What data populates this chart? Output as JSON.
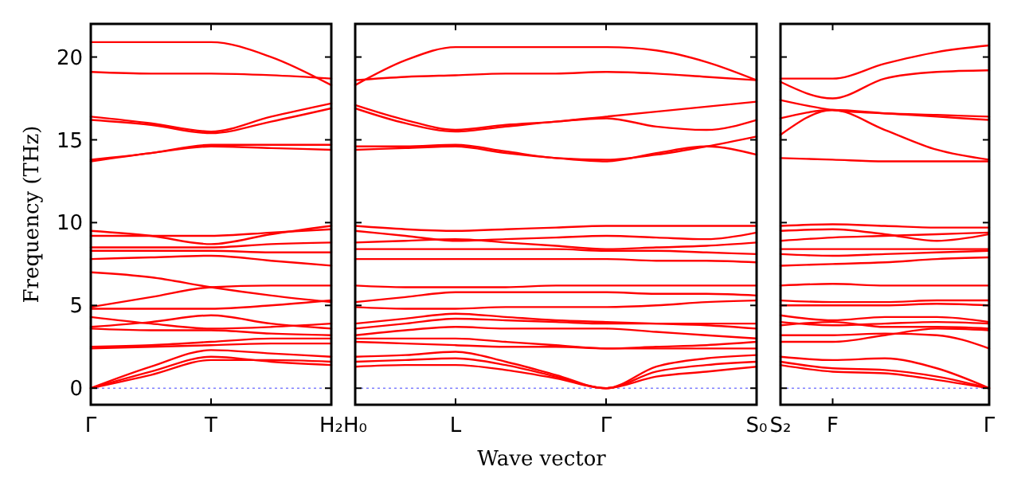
{
  "chart_data": [
    {
      "type": "line",
      "ylabel": "Frequency (THz)",
      "categories": [
        "Γ",
        null,
        "T",
        null,
        "H₂"
      ],
      "ylim": [
        -1,
        22
      ],
      "yticks": [
        0,
        5,
        10,
        15,
        20
      ],
      "marker": "none",
      "line_style": "solid",
      "grid": false,
      "ref_lines": [
        {
          "axis": "y",
          "value": 0,
          "color": "#8080ff",
          "line_style": "dotted"
        }
      ],
      "series": [
        {
          "color": "#ff0000",
          "values": [
            20.9,
            20.9,
            20.9,
            20.0,
            18.3
          ]
        },
        {
          "color": "#ff0000",
          "values": [
            19.1,
            19.0,
            19.0,
            18.9,
            18.7
          ]
        },
        {
          "color": "#ff0000",
          "values": [
            16.4,
            16.0,
            15.5,
            16.4,
            17.2
          ]
        },
        {
          "color": "#ff0000",
          "values": [
            16.2,
            15.9,
            15.4,
            16.1,
            16.9
          ]
        },
        {
          "color": "#ff0000",
          "values": [
            13.8,
            14.2,
            14.7,
            14.7,
            14.7
          ]
        },
        {
          "color": "#ff0000",
          "values": [
            13.7,
            14.2,
            14.6,
            14.5,
            14.4
          ]
        },
        {
          "color": "#ff0000",
          "values": [
            9.5,
            9.2,
            8.7,
            9.3,
            9.8
          ]
        },
        {
          "color": "#ff0000",
          "values": [
            9.2,
            9.2,
            9.2,
            9.4,
            9.6
          ]
        },
        {
          "color": "#ff0000",
          "values": [
            8.5,
            8.5,
            8.5,
            8.7,
            8.8
          ]
        },
        {
          "color": "#ff0000",
          "values": [
            8.3,
            8.3,
            8.3,
            8.2,
            8.2
          ]
        },
        {
          "color": "#ff0000",
          "values": [
            7.8,
            7.9,
            8.0,
            7.7,
            7.4
          ]
        },
        {
          "color": "#ff0000",
          "values": [
            7.0,
            6.7,
            6.1,
            5.6,
            5.2
          ]
        },
        {
          "color": "#ff0000",
          "values": [
            4.9,
            5.5,
            6.1,
            6.2,
            6.2
          ]
        },
        {
          "color": "#ff0000",
          "values": [
            4.8,
            4.8,
            4.8,
            5.0,
            5.3
          ]
        },
        {
          "color": "#ff0000",
          "values": [
            4.3,
            3.9,
            3.6,
            3.7,
            3.9
          ]
        },
        {
          "color": "#ff0000",
          "values": [
            3.7,
            4.0,
            4.4,
            3.9,
            3.6
          ]
        },
        {
          "color": "#ff0000",
          "values": [
            3.6,
            3.5,
            3.5,
            3.3,
            3.2
          ]
        },
        {
          "color": "#ff0000",
          "values": [
            2.5,
            2.6,
            2.8,
            3.0,
            3.0
          ]
        },
        {
          "color": "#ff0000",
          "values": [
            2.4,
            2.5,
            2.6,
            2.7,
            2.7
          ]
        },
        {
          "color": "#ff0000",
          "values": [
            0,
            1.3,
            2.3,
            2.1,
            1.9
          ]
        },
        {
          "color": "#ff0000",
          "values": [
            0,
            1.0,
            1.9,
            1.6,
            1.4
          ]
        },
        {
          "color": "#ff0000",
          "values": [
            0,
            0.8,
            1.7,
            1.7,
            1.6
          ]
        }
      ]
    },
    {
      "type": "line",
      "xlabel": "Wave vector",
      "tick_labels": "x",
      "categories": [
        "H₀",
        null,
        "L",
        null,
        null,
        "Γ",
        null,
        null,
        "S₀"
      ],
      "ylim": [
        -1,
        22
      ],
      "yticks": [
        0,
        5,
        10,
        15,
        20
      ],
      "marker": "none",
      "line_style": "solid",
      "grid": false,
      "ref_lines": [
        {
          "axis": "y",
          "value": 0,
          "color": "#8080ff",
          "line_style": "dotted"
        }
      ],
      "series": [
        {
          "color": "#ff0000",
          "values": [
            18.3,
            19.8,
            20.6,
            20.6,
            20.6,
            20.6,
            20.4,
            19.7,
            18.6
          ]
        },
        {
          "color": "#ff0000",
          "values": [
            18.6,
            18.8,
            18.9,
            19.0,
            19.0,
            19.1,
            19.0,
            18.8,
            18.6
          ]
        },
        {
          "color": "#ff0000",
          "values": [
            17.1,
            16.2,
            15.6,
            15.9,
            16.1,
            16.4,
            16.7,
            17.0,
            17.3
          ]
        },
        {
          "color": "#ff0000",
          "values": [
            16.9,
            16.0,
            15.5,
            15.8,
            16.1,
            16.3,
            15.8,
            15.6,
            16.2
          ]
        },
        {
          "color": "#ff0000",
          "values": [
            14.6,
            14.6,
            14.7,
            14.3,
            13.9,
            13.8,
            14.1,
            14.6,
            15.2
          ]
        },
        {
          "color": "#ff0000",
          "values": [
            14.4,
            14.5,
            14.6,
            14.2,
            13.9,
            13.7,
            14.2,
            14.6,
            14.1
          ]
        },
        {
          "color": "#ff0000",
          "values": [
            9.8,
            9.6,
            9.5,
            9.6,
            9.7,
            9.8,
            9.8,
            9.8,
            9.8
          ]
        },
        {
          "color": "#ff0000",
          "values": [
            9.5,
            9.2,
            8.9,
            9.0,
            9.1,
            9.2,
            9.1,
            9.0,
            9.4
          ]
        },
        {
          "color": "#ff0000",
          "values": [
            8.8,
            8.9,
            9.0,
            8.8,
            8.6,
            8.4,
            8.5,
            8.6,
            8.8
          ]
        },
        {
          "color": "#ff0000",
          "values": [
            8.4,
            8.4,
            8.4,
            8.4,
            8.4,
            8.3,
            8.3,
            8.2,
            8.1
          ]
        },
        {
          "color": "#ff0000",
          "values": [
            7.8,
            7.8,
            7.8,
            7.8,
            7.8,
            7.8,
            7.7,
            7.7,
            7.6
          ]
        },
        {
          "color": "#ff0000",
          "values": [
            6.2,
            6.1,
            6.1,
            6.1,
            6.2,
            6.2,
            6.2,
            6.2,
            6.2
          ]
        },
        {
          "color": "#ff0000",
          "values": [
            5.2,
            5.5,
            5.8,
            5.8,
            5.8,
            5.8,
            5.7,
            5.7,
            5.6
          ]
        },
        {
          "color": "#ff0000",
          "values": [
            4.9,
            4.8,
            4.8,
            4.9,
            4.9,
            4.9,
            5.0,
            5.2,
            5.3
          ]
        },
        {
          "color": "#ff0000",
          "values": [
            3.9,
            4.2,
            4.5,
            4.3,
            4.1,
            4.0,
            3.9,
            3.8,
            3.6
          ]
        },
        {
          "color": "#ff0000",
          "values": [
            3.6,
            3.9,
            4.2,
            4.1,
            4.0,
            3.9,
            3.9,
            3.9,
            3.9
          ]
        },
        {
          "color": "#ff0000",
          "values": [
            3.2,
            3.5,
            3.7,
            3.6,
            3.6,
            3.6,
            3.4,
            3.2,
            3.0
          ]
        },
        {
          "color": "#ff0000",
          "values": [
            3.0,
            3.0,
            3.0,
            2.8,
            2.6,
            2.4,
            2.5,
            2.6,
            2.8
          ]
        },
        {
          "color": "#ff0000",
          "values": [
            2.8,
            2.7,
            2.6,
            2.5,
            2.5,
            2.4,
            2.4,
            2.4,
            2.4
          ]
        },
        {
          "color": "#ff0000",
          "values": [
            1.9,
            2.0,
            2.2,
            1.6,
            0.8,
            0,
            1.3,
            1.8,
            2.0
          ]
        },
        {
          "color": "#ff0000",
          "values": [
            1.6,
            1.7,
            1.8,
            1.4,
            0.7,
            0,
            1.0,
            1.4,
            1.6
          ]
        },
        {
          "color": "#ff0000",
          "values": [
            1.3,
            1.4,
            1.4,
            1.1,
            0.6,
            0,
            0.7,
            1.0,
            1.3
          ]
        }
      ]
    },
    {
      "type": "line",
      "tick_labels": "x",
      "categories": [
        "S₂",
        "F",
        null,
        null,
        "Γ"
      ],
      "ylim": [
        -1,
        22
      ],
      "yticks": [
        0,
        5,
        10,
        15,
        20
      ],
      "marker": "none",
      "line_style": "solid",
      "grid": false,
      "ref_lines": [
        {
          "axis": "y",
          "value": 0,
          "color": "#8080ff",
          "line_style": "dotted"
        }
      ],
      "series": [
        {
          "color": "#ff0000",
          "values": [
            18.7,
            18.7,
            19.6,
            20.3,
            20.7
          ]
        },
        {
          "color": "#ff0000",
          "values": [
            18.5,
            17.5,
            18.7,
            19.1,
            19.2
          ]
        },
        {
          "color": "#ff0000",
          "values": [
            17.4,
            16.8,
            16.6,
            16.5,
            16.4
          ]
        },
        {
          "color": "#ff0000",
          "values": [
            16.3,
            16.8,
            16.6,
            16.4,
            16.2
          ]
        },
        {
          "color": "#ff0000",
          "values": [
            15.3,
            16.8,
            15.6,
            14.4,
            13.8
          ]
        },
        {
          "color": "#ff0000",
          "values": [
            13.9,
            13.8,
            13.7,
            13.7,
            13.7
          ]
        },
        {
          "color": "#ff0000",
          "values": [
            9.8,
            9.9,
            9.8,
            9.7,
            9.7
          ]
        },
        {
          "color": "#ff0000",
          "values": [
            9.5,
            9.6,
            9.3,
            8.9,
            9.3
          ]
        },
        {
          "color": "#ff0000",
          "values": [
            8.9,
            9.1,
            9.2,
            9.3,
            9.4
          ]
        },
        {
          "color": "#ff0000",
          "values": [
            8.4,
            8.4,
            8.4,
            8.4,
            8.4
          ]
        },
        {
          "color": "#ff0000",
          "values": [
            8.1,
            8.0,
            8.1,
            8.2,
            8.3
          ]
        },
        {
          "color": "#ff0000",
          "values": [
            7.4,
            7.5,
            7.6,
            7.8,
            7.9
          ]
        },
        {
          "color": "#ff0000",
          "values": [
            6.2,
            6.3,
            6.2,
            6.2,
            6.2
          ]
        },
        {
          "color": "#ff0000",
          "values": [
            5.3,
            5.2,
            5.2,
            5.3,
            5.3
          ]
        },
        {
          "color": "#ff0000",
          "values": [
            5.0,
            5.0,
            5.0,
            5.1,
            5.0
          ]
        },
        {
          "color": "#ff0000",
          "values": [
            4.4,
            4.1,
            4.3,
            4.3,
            4.0
          ]
        },
        {
          "color": "#ff0000",
          "values": [
            4.0,
            3.8,
            3.9,
            4.0,
            3.9
          ]
        },
        {
          "color": "#ff0000",
          "values": [
            3.8,
            4.0,
            3.7,
            3.7,
            3.6
          ]
        },
        {
          "color": "#ff0000",
          "values": [
            3.2,
            3.2,
            3.3,
            3.2,
            2.4
          ]
        },
        {
          "color": "#ff0000",
          "values": [
            2.8,
            2.8,
            3.2,
            3.6,
            3.5
          ]
        },
        {
          "color": "#ff0000",
          "values": [
            1.9,
            1.7,
            1.8,
            1.2,
            0
          ]
        },
        {
          "color": "#ff0000",
          "values": [
            1.6,
            1.2,
            1.1,
            0.7,
            0
          ]
        },
        {
          "color": "#ff0000",
          "values": [
            1.4,
            1.0,
            0.9,
            0.5,
            0
          ]
        }
      ]
    }
  ]
}
